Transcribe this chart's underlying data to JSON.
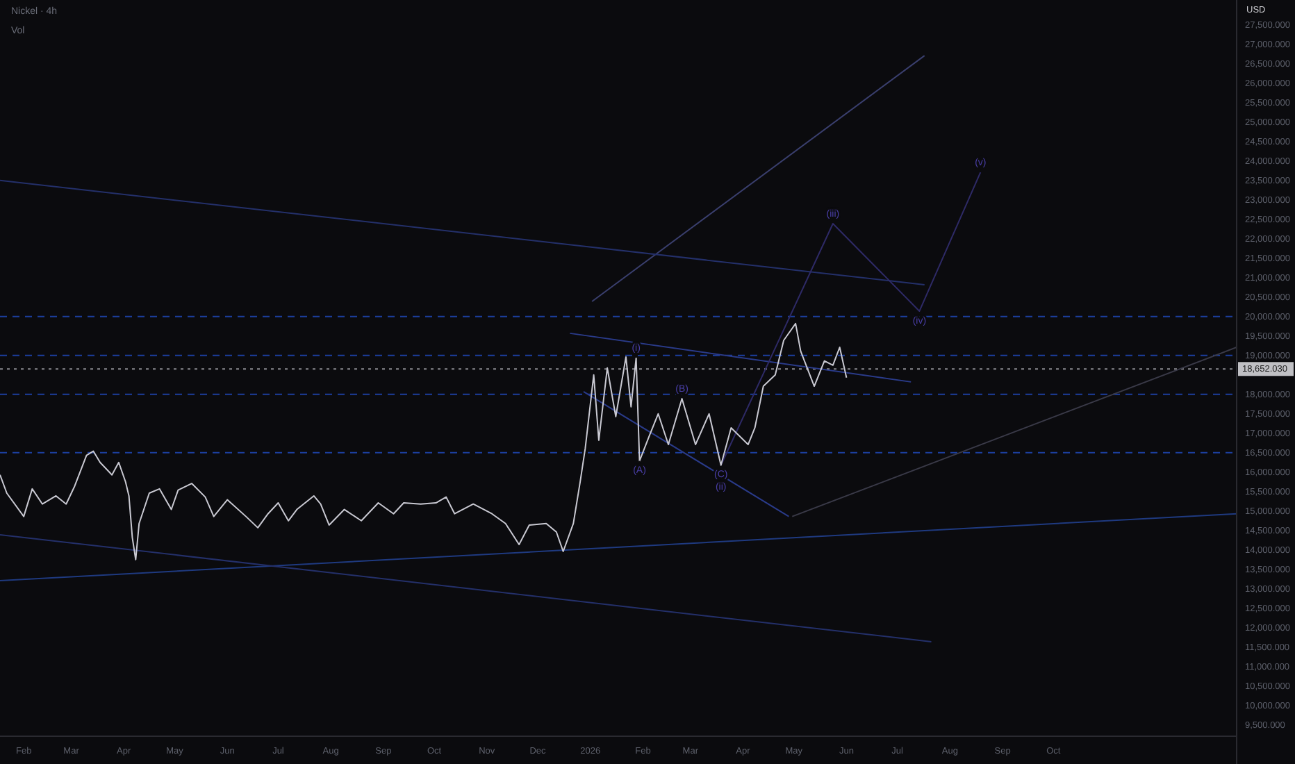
{
  "chart_data": {
    "type": "line",
    "title": "Nickel · 4h",
    "ylabel": "USD",
    "annotations": [
      "Vol",
      {
        "text": "(i)",
        "x": "2026-01-28",
        "y": 18930
      },
      {
        "text": "(C)",
        "x": "2026-03-19",
        "y": 16180
      },
      {
        "text": "(ii)",
        "x": "2026-03-19",
        "y": 16180
      },
      {
        "text": "(iii)",
        "x": "2026-05-24",
        "y": 22390
      },
      {
        "text": "(iv)",
        "x": "2026-07-14",
        "y": 20140
      },
      {
        "text": "(v)",
        "x": "2026-08-19",
        "y": 23710
      },
      {
        "text": "(A)",
        "x": "2026-01-30",
        "y": 16290
      },
      {
        "text": "(B)",
        "x": "2026-02-24",
        "y": 17890
      }
    ],
    "xlim": [
      "2025-01-18",
      "2027-01-17"
    ],
    "xticks": [
      {
        "value": "2025-02-01",
        "label": "Feb"
      },
      {
        "value": "2025-03-01",
        "label": "Mar"
      },
      {
        "value": "2025-04-01",
        "label": "Apr"
      },
      {
        "value": "2025-05-01",
        "label": "May"
      },
      {
        "value": "2025-06-01",
        "label": "Jun"
      },
      {
        "value": "2025-07-01",
        "label": "Jul"
      },
      {
        "value": "2025-08-01",
        "label": "Aug"
      },
      {
        "value": "2025-09-01",
        "label": "Sep"
      },
      {
        "value": "2025-10-01",
        "label": "Oct"
      },
      {
        "value": "2025-11-01",
        "label": "Nov"
      },
      {
        "value": "2025-12-01",
        "label": "Dec"
      },
      {
        "value": "2026-01-01",
        "label": "2026"
      },
      {
        "value": "2026-02-01",
        "label": "Feb"
      },
      {
        "value": "2026-03-01",
        "label": "Mar"
      },
      {
        "value": "2026-04-01",
        "label": "Apr"
      },
      {
        "value": "2026-05-01",
        "label": "May"
      },
      {
        "value": "2026-06-01",
        "label": "Jun"
      },
      {
        "value": "2026-07-01",
        "label": "Jul"
      },
      {
        "value": "2026-08-01",
        "label": "Aug"
      },
      {
        "value": "2026-09-01",
        "label": "Sep"
      },
      {
        "value": "2026-10-01",
        "label": "Oct"
      }
    ],
    "ylim": [
      9210,
      28140
    ],
    "yticks": [
      {
        "value": 9500,
        "label": "9,500.000"
      },
      {
        "value": 10000,
        "label": "10,000.000"
      },
      {
        "value": 10500,
        "label": "10,500.000"
      },
      {
        "value": 11000,
        "label": "11,000.000"
      },
      {
        "value": 11500,
        "label": "11,500.000"
      },
      {
        "value": 12000,
        "label": "12,000.000"
      },
      {
        "value": 12500,
        "label": "12,500.000"
      },
      {
        "value": 13000,
        "label": "13,000.000"
      },
      {
        "value": 13500,
        "label": "13,500.000"
      },
      {
        "value": 14000,
        "label": "14,000.000"
      },
      {
        "value": 14500,
        "label": "14,500.000"
      },
      {
        "value": 15000,
        "label": "15,000.000"
      },
      {
        "value": 15500,
        "label": "15,500.000"
      },
      {
        "value": 16000,
        "label": "16,000.000"
      },
      {
        "value": 16500,
        "label": "16,500.000"
      },
      {
        "value": 17000,
        "label": "17,000.000"
      },
      {
        "value": 17500,
        "label": "17,500.000"
      },
      {
        "value": 18000,
        "label": "18,000.000"
      },
      {
        "value": 19000,
        "label": "19,000.000"
      },
      {
        "value": 19500,
        "label": "19,500.000"
      },
      {
        "value": 20000,
        "label": "20,000.000"
      },
      {
        "value": 20500,
        "label": "20,500.000"
      },
      {
        "value": 21000,
        "label": "21,000.000"
      },
      {
        "value": 21500,
        "label": "21,500.000"
      },
      {
        "value": 22000,
        "label": "22,000.000"
      },
      {
        "value": 22500,
        "label": "22,500.000"
      },
      {
        "value": 23000,
        "label": "23,000.000"
      },
      {
        "value": 23500,
        "label": "23,500.000"
      },
      {
        "value": 24000,
        "label": "24,000.000"
      },
      {
        "value": 24500,
        "label": "24,500.000"
      },
      {
        "value": 25000,
        "label": "25,000.000"
      },
      {
        "value": 25500,
        "label": "25,500.000"
      },
      {
        "value": 26000,
        "label": "26,000.000"
      },
      {
        "value": 26500,
        "label": "26,500.000"
      },
      {
        "value": 27000,
        "label": "27,000.000"
      },
      {
        "value": 27500,
        "label": "27,500.000"
      }
    ],
    "ref_lines": [
      {
        "axis": "y",
        "value": 20000,
        "color": "#1c3f9e",
        "line_style": "dashed"
      },
      {
        "axis": "y",
        "value": 19000,
        "color": "#1c3f9e",
        "line_style": "dashed"
      },
      {
        "axis": "y",
        "value": 18000,
        "color": "#1c3f9e",
        "line_style": "dashed"
      },
      {
        "axis": "y",
        "value": 16500,
        "color": "#1c3f9e",
        "line_style": "dashed"
      },
      {
        "axis": "y",
        "value": 18652.03,
        "label": "18,652.030",
        "color": "#8a8a90",
        "line_style": "dotted"
      }
    ],
    "grid": false,
    "series": [
      {
        "color": "#3a3f6e",
        "x": [
          "2026-01-02",
          "2026-07-17"
        ],
        "values": [
          20390,
          26710
        ]
      },
      {
        "color": "#24306a",
        "x": [
          "2025-01-18",
          "2026-07-17"
        ],
        "values": [
          23500,
          20820
        ]
      },
      {
        "color": "#1f3a80",
        "x": [
          "2025-01-18",
          "2027-01-17"
        ],
        "values": [
          13210,
          14930
        ]
      },
      {
        "color": "#24306a",
        "x": [
          "2025-01-18",
          "2026-07-21"
        ],
        "values": [
          14390,
          11640
        ]
      },
      {
        "color": "#2a3b8a",
        "x": [
          "2025-12-20",
          "2026-07-09"
        ],
        "values": [
          19570,
          18320
        ]
      },
      {
        "color": "#2a3b8a",
        "x": [
          "2025-12-28",
          "2026-04-28"
        ],
        "values": [
          18070,
          14860
        ]
      },
      {
        "color": "#3a3a48",
        "x": [
          "2026-04-30",
          "2027-01-17"
        ],
        "values": [
          14860,
          19210
        ]
      },
      {
        "color": "#2e2a66",
        "x": [
          "2026-03-19",
          "2026-05-24",
          "2026-07-14",
          "2026-08-19"
        ],
        "values": [
          16180,
          22390,
          20140,
          23710
        ]
      },
      {
        "color": "#c9c9d2",
        "x": [
          "2025-01-18",
          "2025-01-22",
          "2025-02-01",
          "2025-02-06",
          "2025-02-12",
          "2025-02-20",
          "2025-02-26",
          "2025-03-03",
          "2025-03-10",
          "2025-03-14",
          "2025-03-18",
          "2025-03-25",
          "2025-03-29",
          "2025-04-02",
          "2025-04-04",
          "2025-04-06",
          "2025-04-08",
          "2025-04-10",
          "2025-04-16",
          "2025-04-22",
          "2025-04-29",
          "2025-05-03",
          "2025-05-11",
          "2025-05-19",
          "2025-05-24",
          "2025-06-01",
          "2025-06-12",
          "2025-06-19",
          "2025-06-25",
          "2025-07-01",
          "2025-07-07",
          "2025-07-12",
          "2025-07-22",
          "2025-07-26",
          "2025-07-31",
          "2025-08-09",
          "2025-08-19",
          "2025-08-29",
          "2025-09-07",
          "2025-09-13",
          "2025-09-23",
          "2025-10-02",
          "2025-10-08",
          "2025-10-13",
          "2025-10-24",
          "2025-11-04",
          "2025-11-12",
          "2025-11-20",
          "2025-11-26",
          "2025-12-06",
          "2025-12-12",
          "2025-12-16",
          "2025-12-22",
          "2025-12-26",
          "2025-12-29",
          "2026-01-03",
          "2026-01-06",
          "2026-01-11",
          "2026-01-16",
          "2026-01-22",
          "2026-01-25",
          "2026-01-28",
          "2026-01-30",
          "2026-02-05",
          "2026-02-10",
          "2026-02-16",
          "2026-02-24",
          "2026-03-04",
          "2026-03-12",
          "2026-03-19",
          "2026-03-25",
          "2026-04-04",
          "2026-04-08",
          "2026-04-13",
          "2026-04-20",
          "2026-04-25",
          "2026-05-02",
          "2026-05-05",
          "2026-05-13",
          "2026-05-19",
          "2026-05-24",
          "2026-05-28",
          "2026-06-01"
        ],
        "values": [
          15930,
          15460,
          14860,
          15570,
          15180,
          15390,
          15180,
          15640,
          16430,
          16540,
          16250,
          15930,
          16250,
          15750,
          15390,
          14320,
          13750,
          14680,
          15460,
          15570,
          15040,
          15540,
          15710,
          15360,
          14860,
          15290,
          14860,
          14570,
          14930,
          15210,
          14750,
          15040,
          15390,
          15180,
          14640,
          15040,
          14750,
          15210,
          14930,
          15210,
          15180,
          15210,
          15360,
          14930,
          15180,
          14930,
          14680,
          14140,
          14640,
          14680,
          14460,
          13960,
          14680,
          15750,
          16610,
          18500,
          16820,
          18680,
          17430,
          18960,
          17680,
          18930,
          16290,
          16960,
          17500,
          16710,
          17890,
          16710,
          17500,
          16180,
          17140,
          16710,
          17140,
          18210,
          18500,
          19390,
          19820,
          19110,
          18210,
          18860,
          18750,
          19210,
          18430
        ]
      }
    ]
  }
}
